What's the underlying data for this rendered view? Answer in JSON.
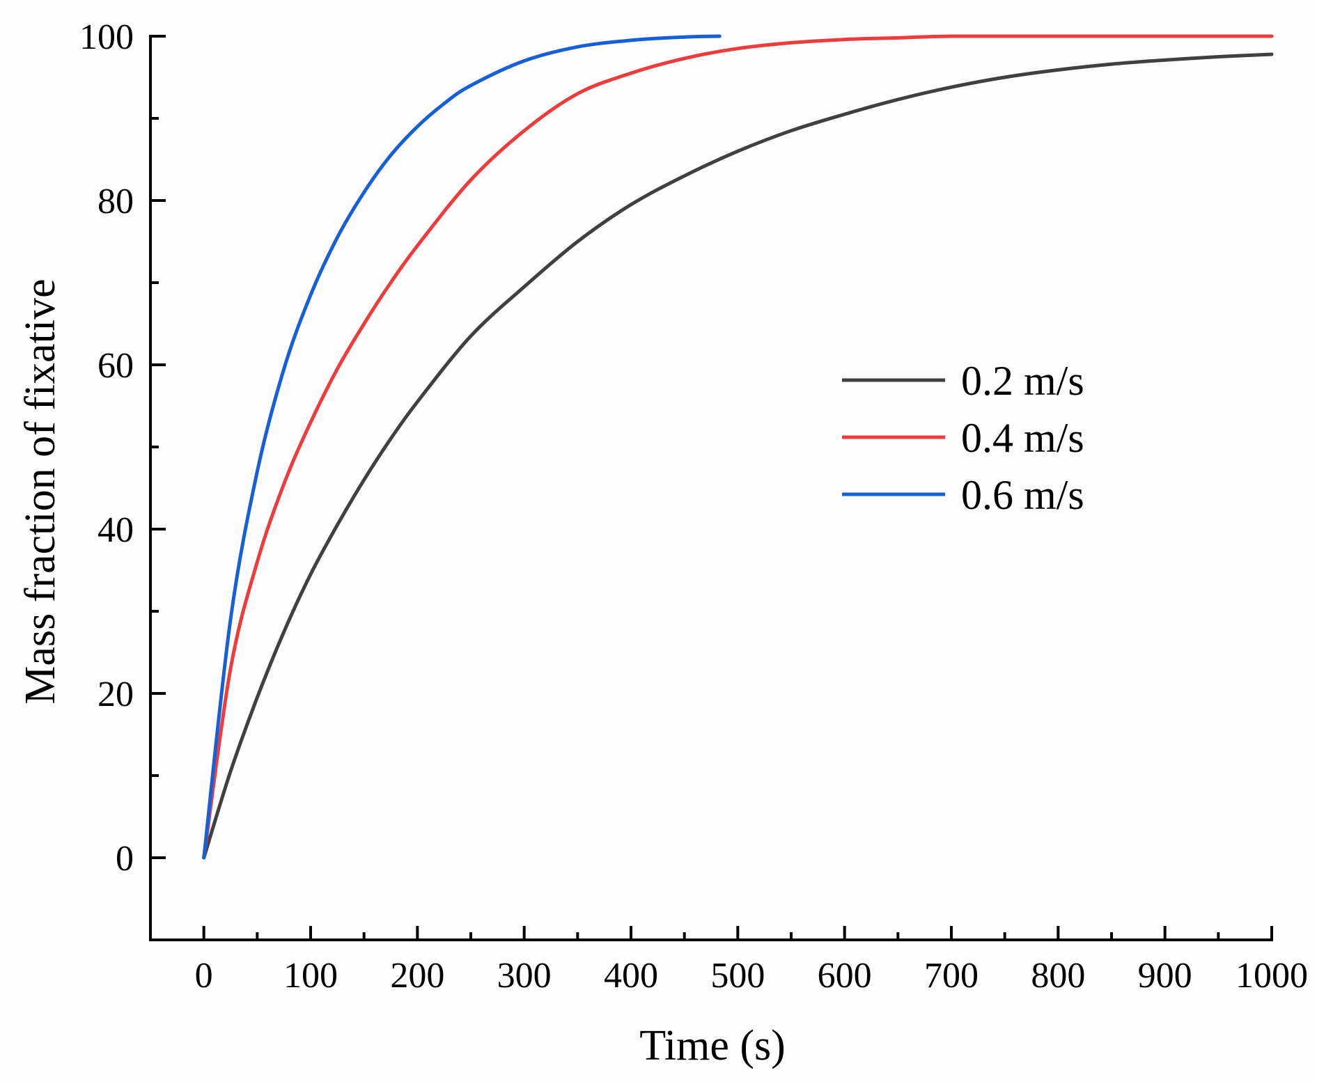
{
  "chart_data": {
    "type": "line",
    "title": "",
    "xlabel": "Time (s)",
    "ylabel": "Mass fraction of fixative",
    "xlim": [
      -50,
      1000
    ],
    "ylim": [
      -10,
      100
    ],
    "x_ticks": [
      0,
      100,
      200,
      300,
      400,
      500,
      600,
      700,
      800,
      900,
      1000
    ],
    "x_tick_labels": [
      "0",
      "100",
      "200",
      "300",
      "400",
      "500",
      "600",
      "700",
      "800",
      "900",
      "1000"
    ],
    "y_ticks": [
      0,
      20,
      40,
      60,
      80,
      100
    ],
    "y_tick_labels": [
      "0",
      "20",
      "40",
      "60",
      "80",
      "100"
    ],
    "grid": false,
    "legend_position": "center-right",
    "series": [
      {
        "name": "0.2 m/s",
        "color": "#404040",
        "x": [
          0,
          25,
          50,
          75,
          100,
          125,
          150,
          175,
          200,
          250,
          300,
          350,
          400,
          450,
          500,
          550,
          600,
          650,
          700,
          750,
          800,
          850,
          900,
          950,
          1000
        ],
        "y": [
          0,
          10.5,
          19.5,
          27.5,
          34.5,
          40.5,
          46.0,
          51.0,
          55.5,
          63.5,
          69.5,
          75.0,
          79.5,
          83.0,
          86.0,
          88.5,
          90.5,
          92.3,
          93.8,
          95.0,
          95.9,
          96.6,
          97.1,
          97.5,
          97.8
        ]
      },
      {
        "name": "0.4 m/s",
        "color": "#ee3b3b",
        "x": [
          0,
          25,
          50,
          75,
          100,
          125,
          150,
          175,
          200,
          250,
          300,
          350,
          400,
          450,
          500,
          550,
          600,
          650,
          700,
          800,
          900,
          1000
        ],
        "y": [
          0,
          23.0,
          36.0,
          45.5,
          53.0,
          59.5,
          65.0,
          70.0,
          74.5,
          82.5,
          88.5,
          93.0,
          95.5,
          97.3,
          98.5,
          99.2,
          99.6,
          99.8,
          100,
          100,
          100,
          100
        ]
      },
      {
        "name": "0.6 m/s",
        "color": "#1560d8",
        "x": [
          0,
          25,
          50,
          75,
          100,
          125,
          150,
          175,
          200,
          225,
          250,
          300,
          350,
          400,
          450,
          483
        ],
        "y": [
          0,
          29.0,
          47.0,
          59.5,
          68.5,
          75.5,
          81.0,
          85.5,
          89.0,
          91.8,
          94.0,
          97.0,
          98.7,
          99.5,
          99.9,
          100
        ]
      }
    ]
  }
}
